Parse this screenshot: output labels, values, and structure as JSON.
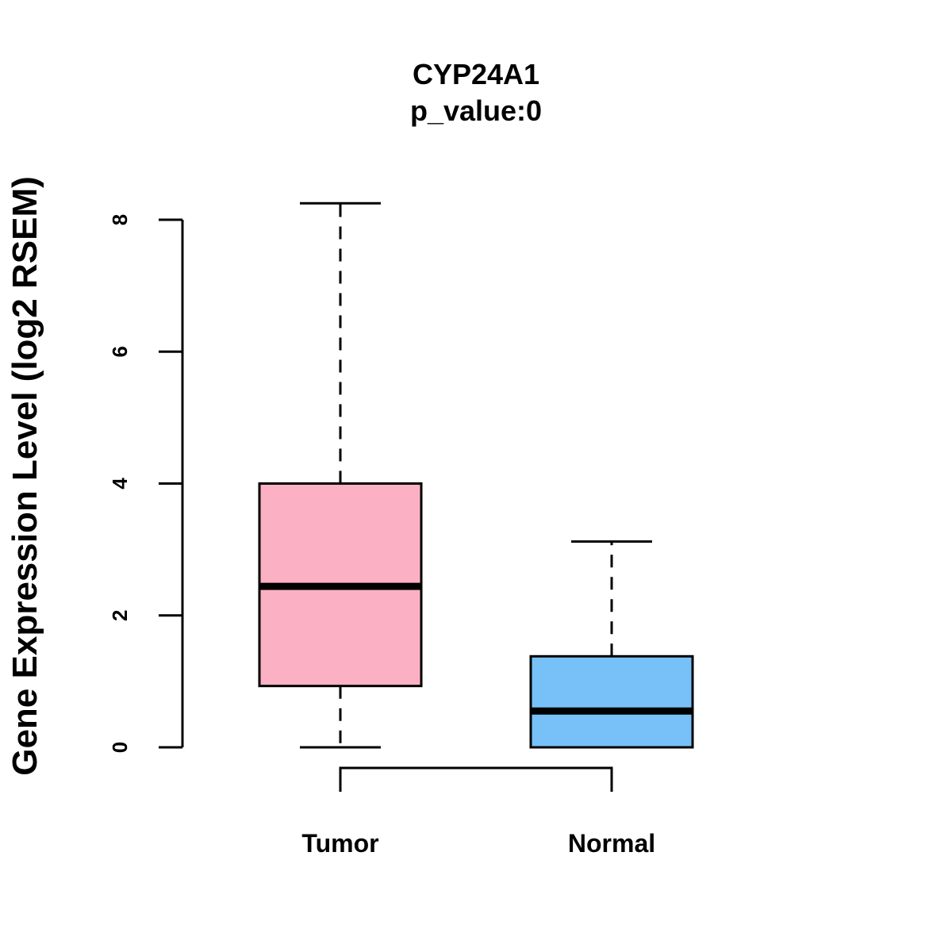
{
  "chart_data": {
    "type": "boxplot",
    "title": "CYP24A1",
    "subtitle": "p_value:0",
    "xlabel": "",
    "ylabel": "Gene Expression Level (log2 RSEM)",
    "ylim": [
      0,
      8
    ],
    "yticks": [
      "0",
      "2",
      "4",
      "6",
      "8"
    ],
    "categories": [
      "Tumor",
      "Normal"
    ],
    "series": [
      {
        "name": "Tumor",
        "min": 0,
        "q1": 0.93,
        "median": 2.44,
        "q3": 4.0,
        "max": 8.25,
        "color": "#FBB1C3"
      },
      {
        "name": "Normal",
        "min": 0,
        "q1": 0,
        "median": 0.55,
        "q3": 1.38,
        "max": 3.12,
        "color": "#77C1F8"
      }
    ],
    "comparison": {
      "from": "Tumor",
      "to": "Normal",
      "label": "p_value:0"
    },
    "grid": false,
    "legend": "none"
  }
}
